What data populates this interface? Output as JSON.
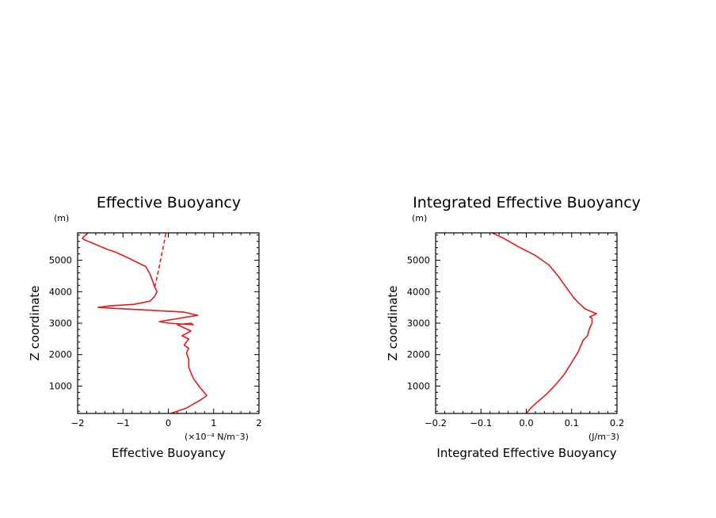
{
  "chart_data": [
    {
      "type": "line",
      "title": "Effective Buoyancy",
      "xlabel": "Effective Buoyancy",
      "ylabel": "Z coordinate",
      "y_unit": "(m)",
      "x_unit": "(×10⁻⁴ N/m⁻3)",
      "xlim": [
        -2,
        2
      ],
      "ylim": [
        130,
        5870
      ],
      "x_ticks": [
        -2,
        -1,
        0,
        1,
        2
      ],
      "x_tick_labels": [
        "−2",
        "−1",
        "0",
        "1",
        "2"
      ],
      "y_ticks": [
        1000,
        2000,
        3000,
        4000,
        5000
      ],
      "y_tick_labels": [
        "1000",
        "2000",
        "3000",
        "4000",
        "5000"
      ],
      "grid": false,
      "series": [
        {
          "style": "solid",
          "color": "#e41a1c",
          "points": [
            [
              0.05,
              130
            ],
            [
              0.4,
              300
            ],
            [
              0.7,
              550
            ],
            [
              0.85,
              700
            ],
            [
              0.7,
              950
            ],
            [
              0.55,
              1250
            ],
            [
              0.45,
              1600
            ],
            [
              0.45,
              1850
            ],
            [
              0.4,
              2050
            ],
            [
              0.45,
              2200
            ],
            [
              0.35,
              2300
            ],
            [
              0.45,
              2500
            ],
            [
              0.3,
              2600
            ],
            [
              0.5,
              2750
            ],
            [
              0.2,
              2950
            ],
            [
              0.5,
              3000
            ],
            [
              0.55,
              2950
            ],
            [
              0.0,
              3000
            ],
            [
              -0.2,
              3050
            ],
            [
              0.65,
              3250
            ],
            [
              0.35,
              3350
            ],
            [
              -1.55,
              3500
            ],
            [
              -1.3,
              3550
            ],
            [
              -0.75,
              3600
            ],
            [
              -0.4,
              3700
            ],
            [
              -0.3,
              3850
            ],
            [
              -0.25,
              4000
            ],
            [
              -0.3,
              4150
            ],
            [
              -0.35,
              4350
            ],
            [
              -0.4,
              4550
            ],
            [
              -0.5,
              4800
            ],
            [
              -0.85,
              5050
            ],
            [
              -1.15,
              5250
            ],
            [
              -1.35,
              5350
            ],
            [
              -1.85,
              5650
            ],
            [
              -1.9,
              5700
            ]
          ]
        },
        {
          "style": "dashed",
          "color": "#e41a1c",
          "points": [
            [
              -0.3,
              4150
            ],
            [
              -0.25,
              4450
            ],
            [
              -0.2,
              4800
            ],
            [
              -0.15,
              5150
            ],
            [
              -0.1,
              5500
            ],
            [
              -0.05,
              5900
            ]
          ]
        },
        {
          "style": "solid",
          "color": "#e41a1c",
          "points": [
            [
              -1.9,
              5700
            ],
            [
              -1.75,
              5900
            ]
          ]
        }
      ]
    },
    {
      "type": "line",
      "title": "Integrated Effective Buoyancy",
      "xlabel": "Integrated Effective Buoyancy",
      "ylabel": "Z coordinate",
      "y_unit": "(m)",
      "x_unit": "(J/m⁻3)",
      "xlim": [
        -0.2,
        0.2
      ],
      "ylim": [
        130,
        5870
      ],
      "x_ticks": [
        -0.2,
        -0.1,
        0.0,
        0.1,
        0.2
      ],
      "x_tick_labels": [
        "−0.2",
        "−0.1",
        "0.0",
        "0.1",
        "0.2"
      ],
      "y_ticks": [
        1000,
        2000,
        3000,
        4000,
        5000
      ],
      "y_tick_labels": [
        "1000",
        "2000",
        "3000",
        "4000",
        "5000"
      ],
      "grid": false,
      "series": [
        {
          "style": "solid",
          "color": "#e41a1c",
          "points": [
            [
              0.0,
              130
            ],
            [
              0.01,
              300
            ],
            [
              0.025,
              500
            ],
            [
              0.045,
              750
            ],
            [
              0.065,
              1050
            ],
            [
              0.085,
              1400
            ],
            [
              0.1,
              1750
            ],
            [
              0.115,
              2100
            ],
            [
              0.125,
              2450
            ],
            [
              0.135,
              2600
            ],
            [
              0.14,
              2850
            ],
            [
              0.145,
              3000
            ],
            [
              0.145,
              3150
            ],
            [
              0.14,
              3200
            ],
            [
              0.155,
              3300
            ],
            [
              0.13,
              3450
            ],
            [
              0.115,
              3650
            ],
            [
              0.105,
              3800
            ],
            [
              0.09,
              4100
            ],
            [
              0.07,
              4500
            ],
            [
              0.05,
              4850
            ],
            [
              0.02,
              5150
            ],
            [
              -0.02,
              5450
            ],
            [
              -0.05,
              5700
            ],
            [
              -0.08,
              5900
            ]
          ]
        }
      ]
    }
  ]
}
